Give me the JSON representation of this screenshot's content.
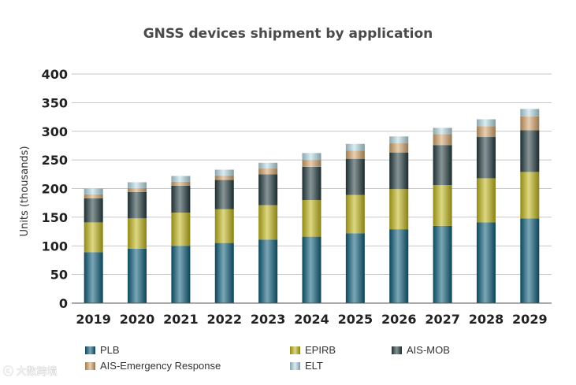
{
  "chart_data": {
    "type": "bar",
    "stacked": true,
    "title": "GNSS devices shipment by application",
    "ylabel": "Units (thousands)",
    "xlabel": "",
    "ylim": [
      0,
      400
    ],
    "yticks": [
      0,
      50,
      100,
      150,
      200,
      250,
      300,
      350,
      400
    ],
    "grid": true,
    "legend_position": "bottom",
    "categories": [
      "2019",
      "2020",
      "2021",
      "2022",
      "2023",
      "2024",
      "2025",
      "2026",
      "2027",
      "2028",
      "2029"
    ],
    "series": [
      {
        "name": "PLB",
        "color": "#0f5f7c",
        "values": [
          89,
          95,
          100,
          105,
          111,
          116,
          122,
          129,
          135,
          141,
          148
        ]
      },
      {
        "name": "EPIRB",
        "color": "#c2b81c",
        "values": [
          52,
          53,
          58,
          59,
          60,
          64,
          67,
          70,
          71,
          77,
          81
        ]
      },
      {
        "name": "AIS-MOB",
        "color": "#263f42",
        "values": [
          42,
          46,
          47,
          51,
          54,
          58,
          63,
          64,
          70,
          72,
          73
        ]
      },
      {
        "name": "AIS-Emergency Response",
        "color": "#d7a86f",
        "values": [
          7,
          7,
          7,
          8,
          10,
          12,
          14,
          16,
          19,
          19,
          24
        ]
      },
      {
        "name": "ELT",
        "color": "#b9dfe8",
        "values": [
          10,
          10,
          10,
          10,
          10,
          12,
          12,
          12,
          11,
          12,
          13
        ]
      }
    ]
  },
  "watermark": "大数跨境"
}
